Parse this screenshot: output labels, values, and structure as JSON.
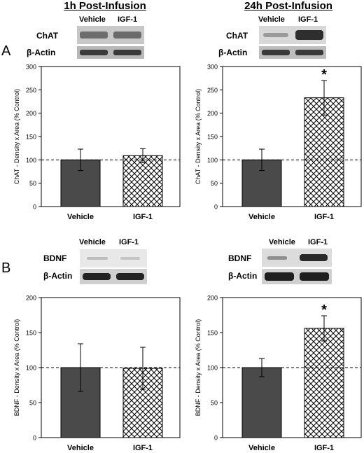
{
  "columns": {
    "left_title": "1h Post-Infusion",
    "right_title": "24h Post-Infusion"
  },
  "panels": {
    "a": "A",
    "b": "B"
  },
  "blots": {
    "vehicle": "Vehicle",
    "igf1": "IGF-1",
    "chat": "ChAT",
    "actin": "β-Actin",
    "bdnf": "BDNF"
  },
  "chart_data": [
    {
      "type": "bar",
      "panel": "A",
      "column": "1h Post-Infusion",
      "categories": [
        "Vehicle",
        "IGF-1"
      ],
      "values": [
        100,
        109
      ],
      "errors": [
        23,
        15
      ],
      "patterns": [
        "solid",
        "crosshatch"
      ],
      "ylabel": "ChAT - Density x Area (% Control)",
      "ylim": [
        0,
        300
      ],
      "yticks": [
        0,
        50,
        100,
        150,
        200,
        250,
        300
      ],
      "reference_line": 100,
      "significance": [
        "",
        ""
      ]
    },
    {
      "type": "bar",
      "panel": "A",
      "column": "24h Post-Infusion",
      "categories": [
        "Vehicle",
        "IGF-1"
      ],
      "values": [
        100,
        233
      ],
      "errors": [
        23,
        37
      ],
      "patterns": [
        "solid",
        "crosshatch"
      ],
      "ylabel": "ChAT - Density x Area (% Control)",
      "ylim": [
        0,
        300
      ],
      "yticks": [
        0,
        50,
        100,
        150,
        200,
        250,
        300
      ],
      "reference_line": 100,
      "significance": [
        "",
        "*"
      ]
    },
    {
      "type": "bar",
      "panel": "B",
      "column": "1h Post-Infusion",
      "categories": [
        "Vehicle",
        "IGF-1"
      ],
      "values": [
        100,
        99
      ],
      "errors": [
        34,
        30
      ],
      "patterns": [
        "solid",
        "crosshatch"
      ],
      "ylabel": "BDNF - Density x Area (% Control)",
      "ylim": [
        0,
        200
      ],
      "yticks": [
        0,
        50,
        100,
        150,
        200
      ],
      "reference_line": 100,
      "significance": [
        "",
        ""
      ]
    },
    {
      "type": "bar",
      "panel": "B",
      "column": "24h Post-Infusion",
      "categories": [
        "Vehicle",
        "IGF-1"
      ],
      "values": [
        100,
        156
      ],
      "errors": [
        13,
        18
      ],
      "patterns": [
        "solid",
        "crosshatch"
      ],
      "ylabel": "BDNF - Density x Area (% Control)",
      "ylim": [
        0,
        200
      ],
      "yticks": [
        0,
        50,
        100,
        150,
        200
      ],
      "reference_line": 100,
      "significance": [
        "",
        "*"
      ]
    }
  ]
}
